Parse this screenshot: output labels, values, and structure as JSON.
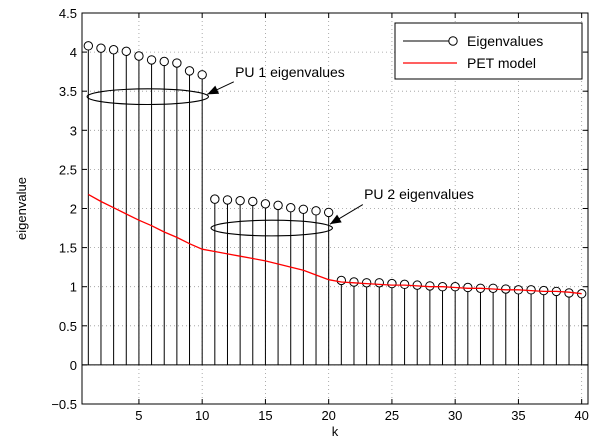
{
  "chart_data": {
    "type": "line",
    "xlabel": "k",
    "ylabel": "eigenvalue",
    "xlim": [
      0.5,
      40.5
    ],
    "ylim": [
      -0.5,
      4.5
    ],
    "xticks": [
      5,
      10,
      15,
      20,
      25,
      30,
      35,
      40
    ],
    "yticks": [
      -0.5,
      0,
      0.5,
      1,
      1.5,
      2,
      2.5,
      3,
      3.5,
      4,
      4.5
    ],
    "ytick_labels": [
      "−0.5",
      "0",
      "0.5",
      "1",
      "1.5",
      "2",
      "2.5",
      "3",
      "3.5",
      "4",
      "4.5"
    ],
    "grid": true,
    "legend_position": "top-right",
    "colors": {
      "eigen": "#000000",
      "pet": "#ff0000",
      "grid": "#999999"
    },
    "x": [
      1,
      2,
      3,
      4,
      5,
      6,
      7,
      8,
      9,
      10,
      11,
      12,
      13,
      14,
      15,
      16,
      17,
      18,
      19,
      20,
      21,
      22,
      23,
      24,
      25,
      26,
      27,
      28,
      29,
      30,
      31,
      32,
      33,
      34,
      35,
      36,
      37,
      38,
      39,
      40
    ],
    "series": [
      {
        "name": "Eigenvalues",
        "style": "stem",
        "values": [
          4.08,
          4.05,
          4.03,
          4.01,
          3.95,
          3.9,
          3.88,
          3.86,
          3.76,
          3.71,
          2.12,
          2.11,
          2.1,
          2.09,
          2.06,
          2.04,
          2.01,
          1.99,
          1.97,
          1.95,
          1.08,
          1.06,
          1.05,
          1.05,
          1.04,
          1.03,
          1.02,
          1.01,
          1.0,
          1.0,
          0.99,
          0.98,
          0.98,
          0.97,
          0.96,
          0.96,
          0.95,
          0.94,
          0.92,
          0.91
        ]
      },
      {
        "name": "PET model",
        "style": "line",
        "values": [
          2.18,
          2.09,
          2.01,
          1.93,
          1.85,
          1.78,
          1.7,
          1.63,
          1.55,
          1.48,
          1.45,
          1.42,
          1.39,
          1.36,
          1.33,
          1.29,
          1.25,
          1.21,
          1.15,
          1.09,
          1.06,
          1.05,
          1.04,
          1.03,
          1.02,
          1.02,
          1.01,
          1.0,
          1.0,
          0.99,
          0.98,
          0.98,
          0.97,
          0.96,
          0.96,
          0.95,
          0.94,
          0.94,
          0.93,
          0.91
        ]
      }
    ],
    "annotations": [
      {
        "text": "PU 1 eigenvalues",
        "ellipse_center": [
          5.7,
          3.43
        ],
        "ellipse_half_width": 4.8,
        "ellipse_half_height": 0.1,
        "label_at": [
          12.6,
          3.68
        ],
        "arrow_tail": [
          12.5,
          3.62
        ],
        "arrow_head": [
          10.4,
          3.46
        ]
      },
      {
        "text": "PU 2 eigenvalues",
        "ellipse_center": [
          15.5,
          1.75
        ],
        "ellipse_half_width": 4.8,
        "ellipse_half_height": 0.1,
        "label_at": [
          22.8,
          2.12
        ],
        "arrow_tail": [
          22.7,
          2.05
        ],
        "arrow_head": [
          20.1,
          1.8
        ]
      }
    ]
  }
}
